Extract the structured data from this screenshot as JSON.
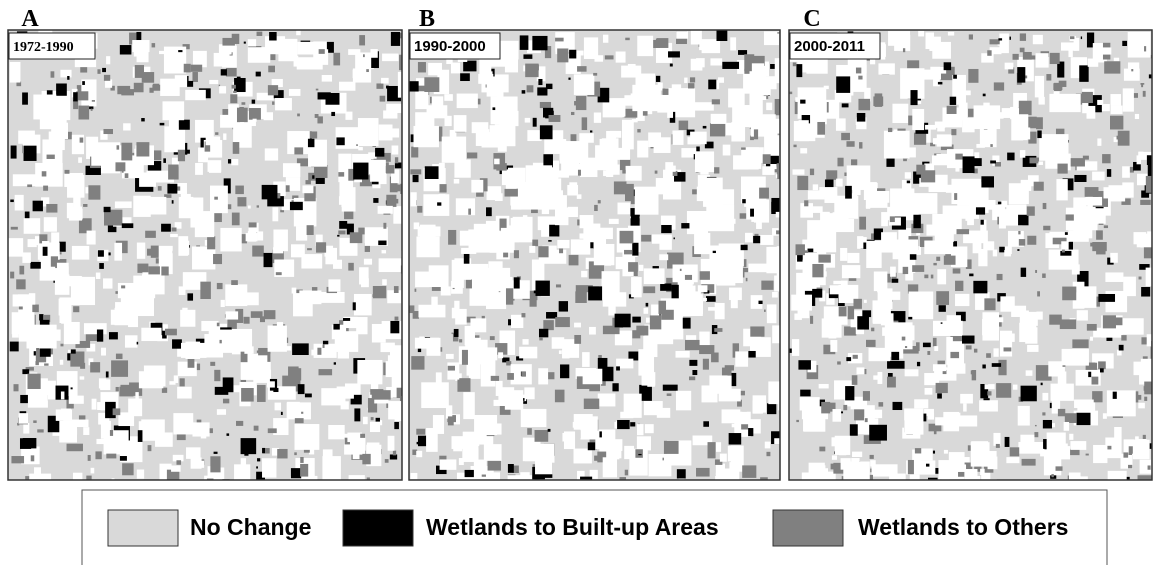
{
  "panels": [
    {
      "letter": "A",
      "period": "1972-1990"
    },
    {
      "letter": "B",
      "period": "1990-2000"
    },
    {
      "letter": "C",
      "period": "2000-2011"
    }
  ],
  "legend": [
    {
      "label": "No Change",
      "color": "#d9d9d9"
    },
    {
      "label": "Wetlands to Built-up Areas",
      "color": "#000000"
    },
    {
      "label": "Wetlands to Others",
      "color": "#808080"
    }
  ]
}
